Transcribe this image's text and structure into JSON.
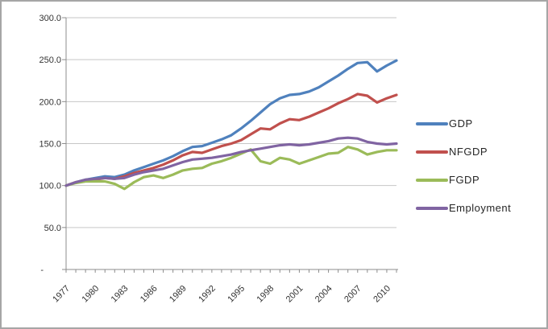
{
  "chart_data": {
    "type": "line",
    "title": "",
    "xlabel": "",
    "ylabel": "",
    "ylim": [
      0,
      300
    ],
    "y_gridline_step": 50,
    "grid": true,
    "legend_position": "right",
    "x": [
      1977,
      1978,
      1979,
      1980,
      1981,
      1982,
      1983,
      1984,
      1985,
      1986,
      1987,
      1988,
      1989,
      1990,
      1991,
      1992,
      1993,
      1994,
      1995,
      1996,
      1997,
      1998,
      1999,
      2000,
      2001,
      2002,
      2003,
      2004,
      2005,
      2006,
      2007,
      2008,
      2009,
      2010,
      2011
    ],
    "x_tick_labels": [
      "1977",
      "1980",
      "1983",
      "1986",
      "1989",
      "1992",
      "1995",
      "1998",
      "2001",
      "2004",
      "2007",
      "2010"
    ],
    "x_tick_label_interval": 3,
    "y_tick_labels": [
      "300.0",
      "250.0",
      "200.0",
      "150.0",
      "100.0",
      "50.0",
      "-"
    ],
    "series": [
      {
        "name": "GDP",
        "color": "#4F81BD",
        "values": [
          100,
          104,
          107,
          109,
          111,
          110,
          113,
          118,
          122,
          126,
          130,
          135,
          141,
          146,
          147,
          151,
          155,
          160,
          168,
          177,
          187,
          197,
          204,
          208,
          209,
          212,
          217,
          224,
          231,
          239,
          246,
          247,
          236,
          243,
          249
        ]
      },
      {
        "name": "NFGDP",
        "color": "#C0504D",
        "values": [
          100,
          104,
          106,
          107,
          109,
          108,
          111,
          115,
          118,
          121,
          125,
          130,
          136,
          140,
          139,
          143,
          147,
          150,
          154,
          161,
          168,
          167,
          174,
          179,
          178,
          182,
          187,
          192,
          198,
          203,
          209,
          207,
          199,
          204,
          208
        ]
      },
      {
        "name": "FGDP",
        "color": "#9BBB59",
        "values": [
          100,
          103,
          105,
          105,
          105,
          102,
          96,
          104,
          110,
          112,
          109,
          113,
          118,
          120,
          121,
          126,
          129,
          133,
          138,
          143,
          129,
          126,
          133,
          131,
          126,
          130,
          134,
          138,
          139,
          146,
          143,
          137,
          140,
          142,
          142
        ]
      },
      {
        "name": "Employment",
        "color": "#8064A2",
        "values": [
          100,
          104,
          107,
          108,
          109,
          108,
          109,
          113,
          116,
          118,
          120,
          124,
          128,
          131,
          132,
          133,
          135,
          137,
          140,
          142,
          144,
          146,
          148,
          149,
          148,
          149,
          151,
          153,
          156,
          157,
          156,
          152,
          150,
          149,
          150
        ]
      }
    ]
  },
  "style_colors": {
    "gridline": "#c6c6c6",
    "axis": "#8c8c8c",
    "tick": "#8c8c8c",
    "text": "#333333",
    "background": "#ffffff",
    "frame_border": "#a6a6a6"
  }
}
